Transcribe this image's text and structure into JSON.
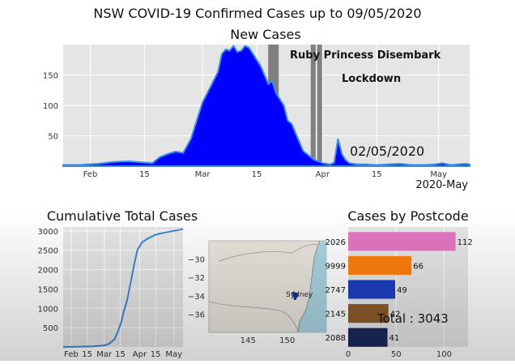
{
  "title": "NSW COVID-19 Confirmed Cases up to 09/05/2020",
  "colors": {
    "area": "#0000ff",
    "area_edge": "#3a8ee6",
    "cum_line": "#3a86d6",
    "marker": "#808080",
    "bg": "#e5e5e5"
  },
  "chart_data": [
    {
      "type": "area",
      "title": "New Cases",
      "x_tick_labels": [
        "Feb",
        "15",
        "Mar",
        "15",
        "Apr",
        "15",
        "May"
      ],
      "x_corner_label": "2020-May",
      "date_label": "02/05/2020",
      "ylim": [
        0,
        200
      ],
      "y_ticks": [
        50,
        100,
        150
      ],
      "y_tick_labels": [
        "50",
        "100",
        "150"
      ],
      "grid": true,
      "annotations": [
        {
          "label": "Ruby Princess Disembark",
          "date": "2020-03-19"
        },
        {
          "label": "Lockdown",
          "date": "2020-03-31"
        }
      ],
      "x": [
        "2020-01-25",
        "2020-01-29",
        "2020-02-03",
        "2020-02-07",
        "2020-02-11",
        "2020-02-13",
        "2020-02-15",
        "2020-02-17",
        "2020-02-19",
        "2020-02-21",
        "2020-02-23",
        "2020-02-25",
        "2020-02-27",
        "2020-02-29",
        "2020-03-01",
        "2020-03-03",
        "2020-03-05",
        "2020-03-06",
        "2020-03-07",
        "2020-03-08",
        "2020-03-09",
        "2020-03-10",
        "2020-03-11",
        "2020-03-12",
        "2020-03-13",
        "2020-03-14",
        "2020-03-15",
        "2020-03-16",
        "2020-03-17",
        "2020-03-18",
        "2020-03-19",
        "2020-03-20",
        "2020-03-21",
        "2020-03-22",
        "2020-03-23",
        "2020-03-24",
        "2020-03-25",
        "2020-03-26",
        "2020-03-27",
        "2020-03-28",
        "2020-03-29",
        "2020-03-30",
        "2020-03-31",
        "2020-04-01",
        "2020-04-02",
        "2020-04-03",
        "2020-04-04",
        "2020-04-05",
        "2020-04-06",
        "2020-04-07",
        "2020-04-08",
        "2020-04-10",
        "2020-04-12",
        "2020-04-15",
        "2020-04-18",
        "2020-04-21",
        "2020-04-24",
        "2020-04-27",
        "2020-04-30",
        "2020-05-02",
        "2020-05-04",
        "2020-05-06",
        "2020-05-08",
        "2020-05-09"
      ],
      "values": [
        2,
        2,
        4,
        7,
        8,
        7,
        6,
        5,
        15,
        20,
        24,
        22,
        45,
        85,
        105,
        130,
        155,
        185,
        192,
        190,
        198,
        188,
        190,
        198,
        195,
        185,
        175,
        165,
        150,
        135,
        140,
        120,
        110,
        100,
        75,
        70,
        55,
        40,
        25,
        20,
        15,
        10,
        8,
        5,
        4,
        3,
        6,
        45,
        20,
        10,
        5,
        3,
        3,
        2,
        3,
        4,
        2,
        2,
        3,
        5,
        2,
        3,
        4,
        3
      ]
    },
    {
      "type": "line",
      "title": "Cumulative Total Cases",
      "x_tick_labels": [
        "Feb",
        "15",
        "Mar",
        "15",
        "Apr",
        "15",
        "May"
      ],
      "ylim": [
        0,
        3100
      ],
      "y_ticks": [
        500,
        1000,
        1500,
        2000,
        2500,
        3000
      ],
      "y_tick_labels": [
        "500",
        "1000",
        "1500",
        "2000",
        "2500",
        "3000"
      ],
      "grid": true,
      "x": [
        "2020-01-25",
        "2020-02-05",
        "2020-02-20",
        "2020-03-01",
        "2020-03-05",
        "2020-03-10",
        "2020-03-13",
        "2020-03-16",
        "2020-03-18",
        "2020-03-21",
        "2020-03-24",
        "2020-03-27",
        "2020-03-30",
        "2020-04-03",
        "2020-04-08",
        "2020-04-15",
        "2020-04-22",
        "2020-05-01",
        "2020-05-09"
      ],
      "values": [
        0,
        4,
        15,
        40,
        80,
        200,
        400,
        650,
        900,
        1200,
        1650,
        2100,
        2500,
        2700,
        2800,
        2900,
        2950,
        3000,
        3043
      ]
    },
    {
      "type": "map",
      "xlim": [
        140,
        155
      ],
      "ylim": [
        -38,
        -28
      ],
      "x_ticks": [
        145,
        150
      ],
      "x_tick_labels": [
        "145",
        "150"
      ],
      "y_ticks": [
        -30,
        -32,
        -34,
        -36
      ],
      "y_tick_labels": [
        "−30",
        "−32",
        "−34",
        "−36"
      ],
      "city_label": "Sydney"
    },
    {
      "type": "bar",
      "title": "Cases by Postcode",
      "categories": [
        "2026",
        "9999",
        "2747",
        "2145",
        "2088"
      ],
      "values": [
        112,
        66,
        49,
        42,
        41
      ],
      "value_labels": [
        "112",
        "66",
        "49",
        "42",
        "41"
      ],
      "colors": [
        "#e377c2",
        "#ff7f0e",
        "#1f3fbf",
        "#8c5a2b",
        "#1a2a5a"
      ],
      "xlim": [
        0,
        125
      ],
      "x_ticks": [
        0,
        50,
        100
      ],
      "x_tick_labels": [
        "0",
        "50",
        "100"
      ],
      "total_label": "Total : 3043"
    }
  ]
}
